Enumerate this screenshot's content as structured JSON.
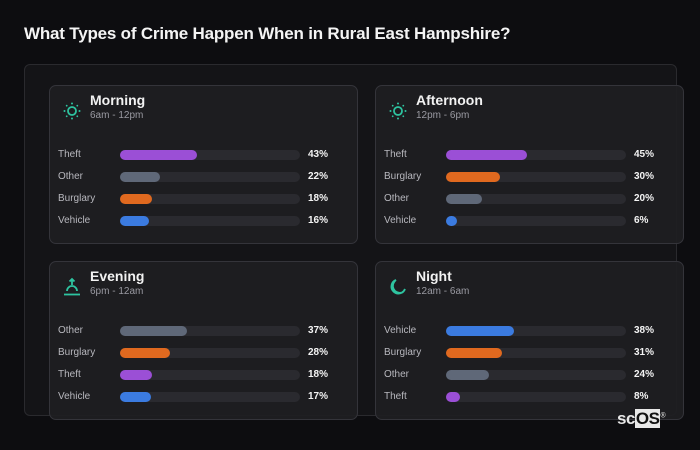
{
  "page": {
    "title": "What Types of Crime Happen When in Rural East Hampshire?"
  },
  "logo": {
    "prefix": "sc",
    "highlight": "OS",
    "mark": "®"
  },
  "colors": {
    "Theft": "#9b4fd6",
    "Other": "#5f6878",
    "Burglary": "#e0691f",
    "Vehicle": "#3b7be0",
    "accent": "#2ec4a0"
  },
  "cards": [
    {
      "name": "Morning",
      "range": "6am - 12pm",
      "icon": "sun-icon",
      "rows": [
        {
          "label": "Theft",
          "value": 43,
          "pct": "43%"
        },
        {
          "label": "Other",
          "value": 22,
          "pct": "22%"
        },
        {
          "label": "Burglary",
          "value": 18,
          "pct": "18%"
        },
        {
          "label": "Vehicle",
          "value": 16,
          "pct": "16%"
        }
      ]
    },
    {
      "name": "Afternoon",
      "range": "12pm - 6pm",
      "icon": "sun-icon",
      "rows": [
        {
          "label": "Theft",
          "value": 45,
          "pct": "45%"
        },
        {
          "label": "Burglary",
          "value": 30,
          "pct": "30%"
        },
        {
          "label": "Other",
          "value": 20,
          "pct": "20%"
        },
        {
          "label": "Vehicle",
          "value": 6,
          "pct": "6%"
        }
      ]
    },
    {
      "name": "Evening",
      "range": "6pm - 12am",
      "icon": "sunset-icon",
      "rows": [
        {
          "label": "Other",
          "value": 37,
          "pct": "37%"
        },
        {
          "label": "Burglary",
          "value": 28,
          "pct": "28%"
        },
        {
          "label": "Theft",
          "value": 18,
          "pct": "18%"
        },
        {
          "label": "Vehicle",
          "value": 17,
          "pct": "17%"
        }
      ]
    },
    {
      "name": "Night",
      "range": "12am - 6am",
      "icon": "moon-icon",
      "rows": [
        {
          "label": "Vehicle",
          "value": 38,
          "pct": "38%"
        },
        {
          "label": "Burglary",
          "value": 31,
          "pct": "31%"
        },
        {
          "label": "Other",
          "value": 24,
          "pct": "24%"
        },
        {
          "label": "Theft",
          "value": 8,
          "pct": "8%"
        }
      ]
    }
  ],
  "chart_data": {
    "type": "bar",
    "title": "What Types of Crime Happen When in Rural East Hampshire?",
    "orientation": "horizontal",
    "xlim": [
      0,
      100
    ],
    "panels": [
      {
        "title": "Morning",
        "subtitle": "6am - 12pm",
        "categories": [
          "Theft",
          "Other",
          "Burglary",
          "Vehicle"
        ],
        "values": [
          43,
          22,
          18,
          16
        ]
      },
      {
        "title": "Afternoon",
        "subtitle": "12pm - 6pm",
        "categories": [
          "Theft",
          "Burglary",
          "Other",
          "Vehicle"
        ],
        "values": [
          45,
          30,
          20,
          6
        ]
      },
      {
        "title": "Evening",
        "subtitle": "6pm - 12am",
        "categories": [
          "Other",
          "Burglary",
          "Theft",
          "Vehicle"
        ],
        "values": [
          37,
          28,
          18,
          17
        ]
      },
      {
        "title": "Night",
        "subtitle": "12am - 6am",
        "categories": [
          "Vehicle",
          "Burglary",
          "Other",
          "Theft"
        ],
        "values": [
          38,
          31,
          24,
          8
        ]
      }
    ]
  }
}
